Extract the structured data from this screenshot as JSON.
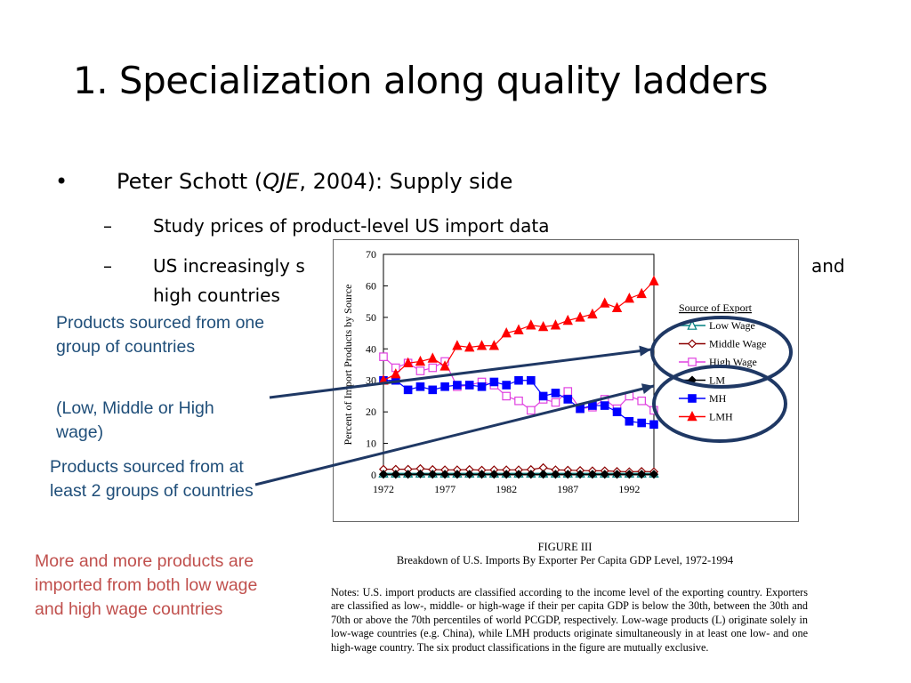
{
  "slide": {
    "title": "1. Specialization along quality ladders",
    "bullet_marker": "•",
    "bullet_text_pre": "Peter Schott (",
    "bullet_text_italic": "QJE",
    "bullet_text_post": ", 2004): Supply side",
    "sub_marker": "–",
    "sub1": "Study prices of product-level US import data",
    "sub2_start": "US increasingly s",
    "sub2_end": "and",
    "sub2_cont": "high countries"
  },
  "annotations": {
    "note1": "Products sourced from one group of countries",
    "note2": "(Low, Middle or High wage)",
    "note3": "Products sourced from at least 2 groups of countries",
    "note4": "More and more products are imported from both low wage and high wage countries"
  },
  "colors": {
    "annotation_blue": "#1F4E79",
    "annotation_red": "#C0504D",
    "arrow": "#1F3864"
  },
  "figure": {
    "caption_line1": "FIGURE III",
    "caption_line2": "Breakdown of U.S. Imports By Exporter Per Capita GDP Level, 1972-1994",
    "notes": "Notes:  U.S. import products are classified according to the income level of the exporting country.  Exporters are classified as low-, middle- or high-wage if their per capita GDP is below the 30th, between the 30th and 70th or above the 70th percentiles of world PCGDP, respectively.  Low-wage products (L) originate solely in low-wage countries (e.g. China), while LMH products originate simultaneously in at least one low- and one high-wage country. The six product classifications in the figure are mutually exclusive."
  },
  "chart_data": {
    "type": "line",
    "ylabel": "Percent of Import Products by Source",
    "xlabel": "",
    "ylim": [
      0,
      70
    ],
    "xlim": [
      1972,
      1994
    ],
    "yticks": [
      0,
      10,
      20,
      30,
      40,
      50,
      60,
      70
    ],
    "xticks": [
      1972,
      1977,
      1982,
      1987,
      1992
    ],
    "legend_title": "Source of Export",
    "legend_position": "right",
    "x": [
      1972,
      1973,
      1974,
      1975,
      1976,
      1977,
      1978,
      1979,
      1980,
      1981,
      1982,
      1983,
      1984,
      1985,
      1986,
      1987,
      1988,
      1989,
      1990,
      1991,
      1992,
      1993,
      1994
    ],
    "series": [
      {
        "name": "Low Wage",
        "color": "#008080",
        "marker": "triangle-open",
        "values": [
          0.5,
          0.5,
          0.5,
          0.5,
          0.5,
          0.5,
          0.5,
          0.5,
          0.5,
          0.5,
          0.5,
          0.5,
          0.5,
          0.5,
          0.5,
          0.5,
          0.5,
          0.5,
          0.5,
          0.5,
          0.5,
          0.5,
          0.5
        ]
      },
      {
        "name": "Middle Wage",
        "color": "#8B0000",
        "marker": "diamond-open",
        "values": [
          1.8,
          1.8,
          1.8,
          2.0,
          1.7,
          1.6,
          1.6,
          1.7,
          1.5,
          1.6,
          1.6,
          1.6,
          1.7,
          2.3,
          1.6,
          1.5,
          1.4,
          1.3,
          1.3,
          1.1,
          1.0,
          1.1,
          1.0
        ]
      },
      {
        "name": "High Wage",
        "color": "#E040E0",
        "marker": "square-open",
        "values": [
          37.5,
          34,
          35.5,
          33,
          34,
          36,
          28,
          28.5,
          29.5,
          28.5,
          25,
          23.5,
          20.5,
          24,
          23,
          26.5,
          21,
          21.5,
          24,
          21,
          25,
          23.5,
          20.5
        ]
      },
      {
        "name": "LM",
        "color": "#000000",
        "marker": "diamond-filled",
        "values": [
          0.2,
          0.2,
          0.2,
          0.3,
          0.2,
          0.2,
          0.2,
          0.2,
          0.2,
          0.2,
          0.2,
          0.2,
          0.2,
          0.2,
          0.2,
          0.2,
          0.2,
          0.2,
          0.2,
          0.2,
          0.2,
          0.2,
          0.2
        ]
      },
      {
        "name": "MH",
        "color": "#0000FF",
        "marker": "square-filled",
        "values": [
          30,
          30,
          27,
          28,
          27,
          28,
          28.5,
          28.5,
          28,
          29.5,
          28.5,
          30,
          30,
          25,
          26,
          24,
          21,
          22,
          22,
          20,
          17,
          16.5,
          16
        ]
      },
      {
        "name": "LMH",
        "color": "#FF0000",
        "marker": "triangle-filled",
        "values": [
          30,
          32,
          35.5,
          36,
          37,
          34.5,
          41,
          40.5,
          41,
          41,
          45,
          46,
          47.5,
          47,
          47.5,
          49,
          50,
          51,
          54.5,
          53,
          56,
          57.5,
          61.5
        ]
      }
    ]
  }
}
